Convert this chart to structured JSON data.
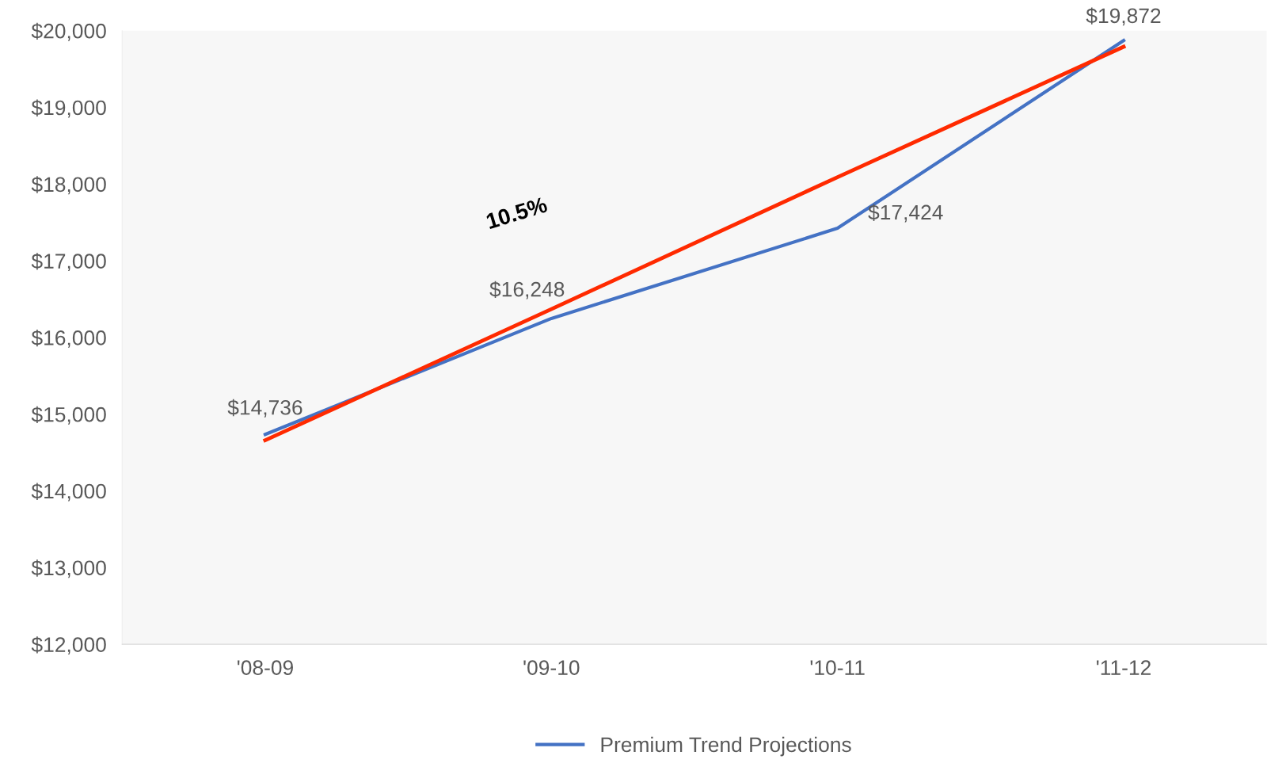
{
  "chart_data": {
    "type": "line",
    "categories": [
      "'08-09",
      "'09-10",
      "'10-11",
      "'11-12"
    ],
    "series": [
      {
        "name": "Premium Trend Projections",
        "color": "#4472c4",
        "values": [
          14736,
          16248,
          17424,
          19872
        ],
        "value_labels": [
          "$14,736",
          "$16,248",
          "$17,424",
          "$19,872"
        ]
      },
      {
        "color": "#ff2a00",
        "values": [
          14660,
          16370,
          18090,
          19790
        ]
      }
    ],
    "ylim": [
      12000,
      20000
    ],
    "yticks": [
      {
        "value": 12000,
        "label": "$12,000"
      },
      {
        "value": 13000,
        "label": "$13,000"
      },
      {
        "value": 14000,
        "label": "$14,000"
      },
      {
        "value": 15000,
        "label": "$15,000"
      },
      {
        "value": 16000,
        "label": "$16,000"
      },
      {
        "value": 17000,
        "label": "$17,000"
      },
      {
        "value": 18000,
        "label": "$18,000"
      },
      {
        "value": 19000,
        "label": "$19,000"
      },
      {
        "value": 20000,
        "label": "$20,000"
      }
    ],
    "annotations": [
      "10.5%"
    ],
    "grid": false,
    "legend": "bottom",
    "marker": "none",
    "line_style": "solid"
  }
}
